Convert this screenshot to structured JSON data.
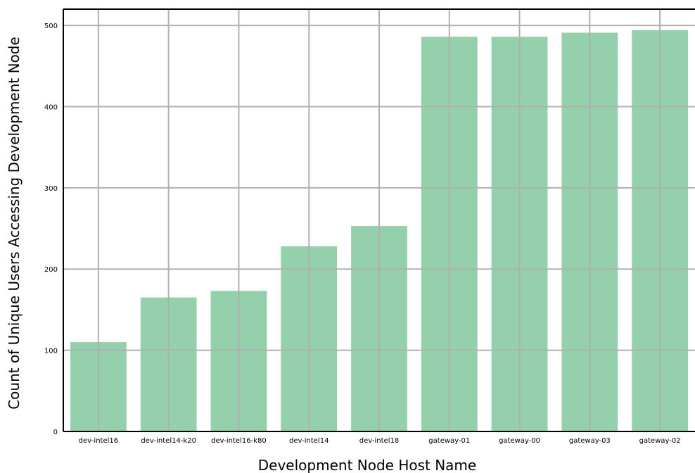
{
  "chart_data": {
    "type": "bar",
    "title": "",
    "xlabel": "Development Node Host Name",
    "ylabel": "Count of Unique Users Accessing Development Node",
    "categories": [
      "dev-intel16",
      "dev-intel14-k20",
      "dev-intel16-k80",
      "dev-intel14",
      "dev-intel18",
      "gateway-01",
      "gateway-00",
      "gateway-03",
      "gateway-02"
    ],
    "values": [
      110,
      165,
      173,
      228,
      253,
      486,
      486,
      491,
      494
    ],
    "ylim": [
      0,
      520
    ],
    "yticks": [
      0,
      100,
      200,
      300,
      400,
      500
    ],
    "grid": true,
    "bar_color": "#88cba3",
    "grid_color": "#b0b0b0"
  }
}
